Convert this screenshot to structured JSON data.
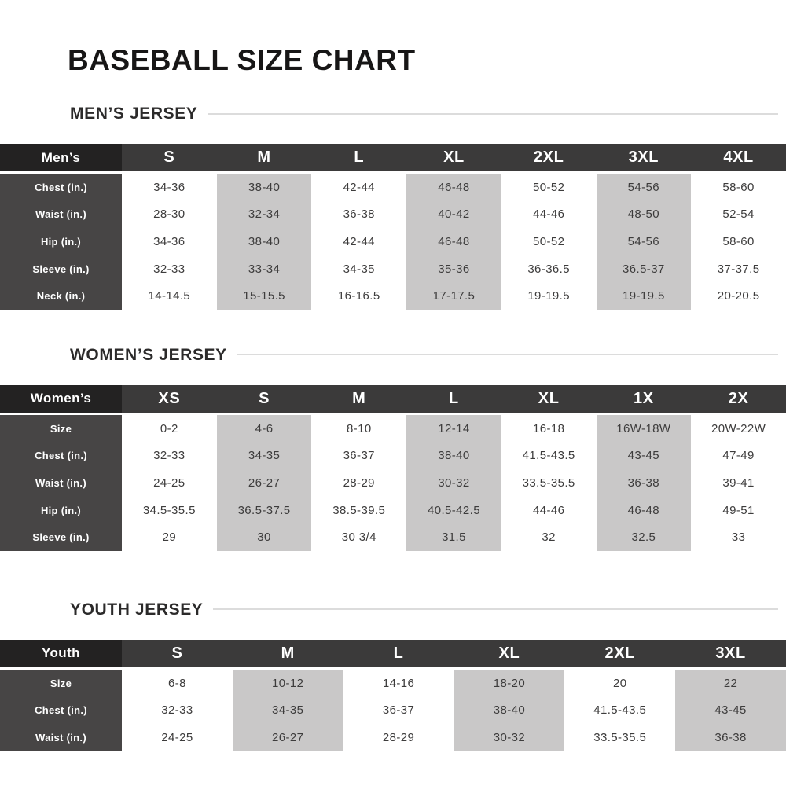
{
  "page": {
    "title": "BASEBALL SIZE CHART"
  },
  "sections": [
    {
      "id": "mens",
      "heading": "MEN’S JERSEY",
      "corner": "Men’s",
      "sizes": [
        "S",
        "M",
        "L",
        "XL",
        "2XL",
        "3XL",
        "4XL"
      ],
      "rows": [
        {
          "label": "Chest (in.)",
          "values": [
            "34-36",
            "38-40",
            "42-44",
            "46-48",
            "50-52",
            "54-56",
            "58-60"
          ]
        },
        {
          "label": "Waist (in.)",
          "values": [
            "28-30",
            "32-34",
            "36-38",
            "40-42",
            "44-46",
            "48-50",
            "52-54"
          ]
        },
        {
          "label": "Hip (in.)",
          "values": [
            "34-36",
            "38-40",
            "42-44",
            "46-48",
            "50-52",
            "54-56",
            "58-60"
          ]
        },
        {
          "label": "Sleeve (in.)",
          "values": [
            "32-33",
            "33-34",
            "34-35",
            "35-36",
            "36-36.5",
            "36.5-37",
            "37-37.5"
          ]
        },
        {
          "label": "Neck (in.)",
          "values": [
            "14-14.5",
            "15-15.5",
            "16-16.5",
            "17-17.5",
            "19-19.5",
            "19-19.5",
            "20-20.5"
          ]
        }
      ]
    },
    {
      "id": "womens",
      "heading": "WOMEN’S JERSEY",
      "corner": "Women’s",
      "sizes": [
        "XS",
        "S",
        "M",
        "L",
        "XL",
        "1X",
        "2X"
      ],
      "rows": [
        {
          "label": "Size",
          "values": [
            "0-2",
            "4-6",
            "8-10",
            "12-14",
            "16-18",
            "16W-18W",
            "20W-22W"
          ]
        },
        {
          "label": "Chest (in.)",
          "values": [
            "32-33",
            "34-35",
            "36-37",
            "38-40",
            "41.5-43.5",
            "43-45",
            "47-49"
          ]
        },
        {
          "label": "Waist (in.)",
          "values": [
            "24-25",
            "26-27",
            "28-29",
            "30-32",
            "33.5-35.5",
            "36-38",
            "39-41"
          ]
        },
        {
          "label": "Hip (in.)",
          "values": [
            "34.5-35.5",
            "36.5-37.5",
            "38.5-39.5",
            "40.5-42.5",
            "44-46",
            "46-48",
            "49-51"
          ]
        },
        {
          "label": "Sleeve (in.)",
          "values": [
            "29",
            "30",
            "30 3/4",
            "31.5",
            "32",
            "32.5",
            "33"
          ]
        }
      ]
    },
    {
      "id": "youth",
      "heading": "YOUTH JERSEY",
      "corner": "Youth",
      "sizes": [
        "S",
        "M",
        "L",
        "XL",
        "2XL",
        "3XL"
      ],
      "rows": [
        {
          "label": "Size",
          "values": [
            "6-8",
            "10-12",
            "14-16",
            "18-20",
            "20",
            "22"
          ]
        },
        {
          "label": "Chest (in.)",
          "values": [
            "32-33",
            "34-35",
            "36-37",
            "38-40",
            "41.5-43.5",
            "43-45"
          ]
        },
        {
          "label": "Waist (in.)",
          "values": [
            "24-25",
            "26-27",
            "28-29",
            "30-32",
            "33.5-35.5",
            "36-38"
          ]
        }
      ]
    }
  ],
  "colors": {
    "header_bg": "#3b3a3a",
    "corner_bg": "#232222",
    "row_label_bg": "#474545",
    "stripe_bg": "#c9c8c8",
    "cell_text": "#3d3c3c",
    "heading_text": "#2b2a2a",
    "rule_line": "#dcdcdc"
  }
}
